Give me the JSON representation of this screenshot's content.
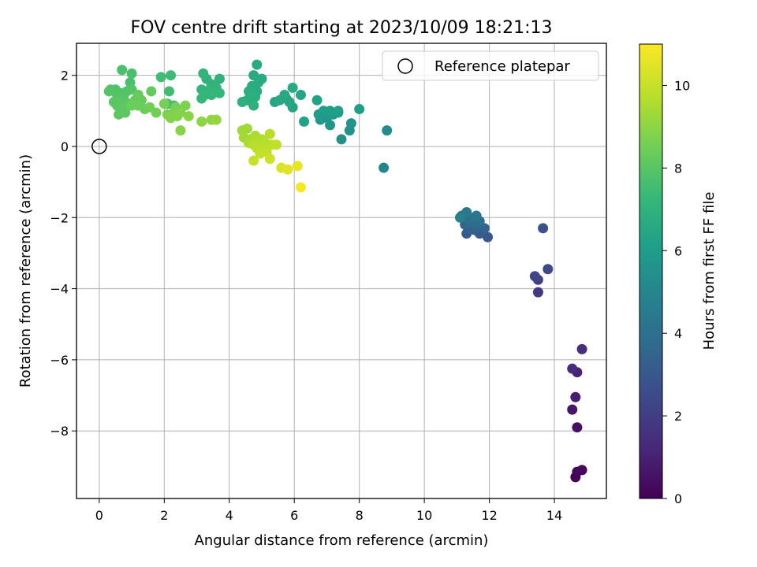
{
  "chart_data": {
    "type": "scatter",
    "title": "FOV centre drift starting at 2023/10/09 18:21:13",
    "xlabel": "Angular distance from reference (arcmin)",
    "ylabel": "Rotation from reference (arcmin)",
    "xlim": [
      -0.7,
      15.6
    ],
    "ylim": [
      -9.9,
      2.9
    ],
    "xticks": [
      0,
      2,
      4,
      6,
      8,
      10,
      12,
      14
    ],
    "yticks": [
      -8,
      -6,
      -4,
      -2,
      0,
      2
    ],
    "xtick_labels": [
      "0",
      "2",
      "4",
      "6",
      "8",
      "10",
      "12",
      "14"
    ],
    "ytick_labels": [
      "−8",
      "−6",
      "−4",
      "−2",
      "0",
      "2"
    ],
    "grid": true,
    "legend": {
      "position": "top-right",
      "entries": [
        "Reference platepar"
      ]
    },
    "reference_point": {
      "x": 0,
      "y": 0
    },
    "colorbar": {
      "label": "Hours from first FF file",
      "range": [
        0,
        11
      ],
      "ticks": [
        0,
        2,
        4,
        6,
        8,
        10
      ],
      "tick_labels": [
        "0",
        "2",
        "4",
        "6",
        "8",
        "10"
      ],
      "colormap": "viridis",
      "colors": [
        "#440154",
        "#482878",
        "#3e4989",
        "#31688e",
        "#26828e",
        "#1f9e89",
        "#35b779",
        "#6ece58",
        "#b5de2b",
        "#fde725"
      ]
    },
    "points": [
      {
        "x": 14.65,
        "y": -9.3,
        "c": 0.05
      },
      {
        "x": 14.7,
        "y": -9.15,
        "c": 0.15
      },
      {
        "x": 14.85,
        "y": -9.1,
        "c": 0.25
      },
      {
        "x": 14.7,
        "y": -7.9,
        "c": 0.5
      },
      {
        "x": 14.55,
        "y": -7.4,
        "c": 0.7
      },
      {
        "x": 14.65,
        "y": -7.05,
        "c": 0.9
      },
      {
        "x": 14.7,
        "y": -6.35,
        "c": 1.1
      },
      {
        "x": 14.55,
        "y": -6.25,
        "c": 1.3
      },
      {
        "x": 14.85,
        "y": -5.7,
        "c": 1.5
      },
      {
        "x": 13.5,
        "y": -4.1,
        "c": 1.9
      },
      {
        "x": 13.5,
        "y": -3.75,
        "c": 2.1
      },
      {
        "x": 13.4,
        "y": -3.65,
        "c": 2.3
      },
      {
        "x": 13.8,
        "y": -3.45,
        "c": 2.5
      },
      {
        "x": 13.65,
        "y": -2.3,
        "c": 2.8
      },
      {
        "x": 11.95,
        "y": -2.55,
        "c": 3.0
      },
      {
        "x": 11.3,
        "y": -2.45,
        "c": 3.1
      },
      {
        "x": 11.7,
        "y": -2.45,
        "c": 3.2
      },
      {
        "x": 11.55,
        "y": -2.35,
        "c": 3.3
      },
      {
        "x": 11.4,
        "y": -2.3,
        "c": 3.4
      },
      {
        "x": 11.85,
        "y": -2.3,
        "c": 3.5
      },
      {
        "x": 11.25,
        "y": -2.2,
        "c": 3.6
      },
      {
        "x": 11.6,
        "y": -2.2,
        "c": 3.7
      },
      {
        "x": 11.45,
        "y": -2.15,
        "c": 3.8
      },
      {
        "x": 11.7,
        "y": -2.1,
        "c": 3.9
      },
      {
        "x": 11.35,
        "y": -2.05,
        "c": 4.0
      },
      {
        "x": 11.55,
        "y": -2.0,
        "c": 4.1
      },
      {
        "x": 11.15,
        "y": -1.95,
        "c": 4.2
      },
      {
        "x": 11.6,
        "y": -1.95,
        "c": 4.3
      },
      {
        "x": 11.3,
        "y": -1.85,
        "c": 4.4
      },
      {
        "x": 11.1,
        "y": -2.0,
        "c": 4.8
      },
      {
        "x": 8.75,
        "y": -0.6,
        "c": 5.1
      },
      {
        "x": 8.85,
        "y": 0.45,
        "c": 5.3
      },
      {
        "x": 7.45,
        "y": 0.2,
        "c": 5.5
      },
      {
        "x": 7.7,
        "y": 0.45,
        "c": 5.6
      },
      {
        "x": 7.75,
        "y": 0.65,
        "c": 5.7
      },
      {
        "x": 7.1,
        "y": 0.6,
        "c": 5.8
      },
      {
        "x": 6.8,
        "y": 0.75,
        "c": 5.9
      },
      {
        "x": 7.0,
        "y": 0.8,
        "c": 5.9
      },
      {
        "x": 6.75,
        "y": 0.9,
        "c": 6.0
      },
      {
        "x": 7.2,
        "y": 0.9,
        "c": 6.0
      },
      {
        "x": 7.35,
        "y": 0.95,
        "c": 6.1
      },
      {
        "x": 6.9,
        "y": 1.0,
        "c": 6.1
      },
      {
        "x": 7.1,
        "y": 1.0,
        "c": 6.1
      },
      {
        "x": 7.35,
        "y": 1.0,
        "c": 6.2
      },
      {
        "x": 8.0,
        "y": 1.05,
        "c": 6.2
      },
      {
        "x": 6.7,
        "y": 1.3,
        "c": 6.3
      },
      {
        "x": 6.3,
        "y": 0.7,
        "c": 6.3
      },
      {
        "x": 5.95,
        "y": 1.1,
        "c": 6.4
      },
      {
        "x": 6.2,
        "y": 1.45,
        "c": 6.4
      },
      {
        "x": 5.85,
        "y": 1.25,
        "c": 6.5
      },
      {
        "x": 5.75,
        "y": 1.35,
        "c": 6.5
      },
      {
        "x": 5.4,
        "y": 1.25,
        "c": 6.5
      },
      {
        "x": 5.55,
        "y": 1.3,
        "c": 6.6
      },
      {
        "x": 5.7,
        "y": 1.45,
        "c": 6.6
      },
      {
        "x": 5.95,
        "y": 1.65,
        "c": 6.6
      },
      {
        "x": 4.85,
        "y": 2.3,
        "c": 6.7
      },
      {
        "x": 5.0,
        "y": 1.9,
        "c": 6.7
      },
      {
        "x": 4.75,
        "y": 2.0,
        "c": 6.7
      },
      {
        "x": 4.9,
        "y": 1.8,
        "c": 6.8
      },
      {
        "x": 4.7,
        "y": 1.7,
        "c": 6.8
      },
      {
        "x": 4.85,
        "y": 1.55,
        "c": 6.8
      },
      {
        "x": 4.6,
        "y": 1.55,
        "c": 6.9
      },
      {
        "x": 4.8,
        "y": 1.4,
        "c": 6.9
      },
      {
        "x": 4.55,
        "y": 1.3,
        "c": 6.9
      },
      {
        "x": 4.7,
        "y": 1.25,
        "c": 6.9
      },
      {
        "x": 4.4,
        "y": 1.25,
        "c": 7.0
      },
      {
        "x": 4.75,
        "y": 1.15,
        "c": 7.0
      },
      {
        "x": 3.7,
        "y": 1.9,
        "c": 7.1
      },
      {
        "x": 3.45,
        "y": 1.75,
        "c": 7.1
      },
      {
        "x": 3.3,
        "y": 1.9,
        "c": 7.1
      },
      {
        "x": 3.2,
        "y": 2.05,
        "c": 7.2
      },
      {
        "x": 3.6,
        "y": 1.65,
        "c": 7.2
      },
      {
        "x": 3.4,
        "y": 1.6,
        "c": 7.2
      },
      {
        "x": 3.15,
        "y": 1.6,
        "c": 7.2
      },
      {
        "x": 3.7,
        "y": 1.5,
        "c": 7.3
      },
      {
        "x": 3.45,
        "y": 1.45,
        "c": 7.3
      },
      {
        "x": 3.25,
        "y": 1.45,
        "c": 7.3
      },
      {
        "x": 3.15,
        "y": 1.35,
        "c": 7.3
      },
      {
        "x": 2.2,
        "y": 2.0,
        "c": 7.5
      },
      {
        "x": 1.9,
        "y": 1.95,
        "c": 7.6
      },
      {
        "x": 2.15,
        "y": 1.55,
        "c": 7.6
      },
      {
        "x": 2.3,
        "y": 1.15,
        "c": 7.7
      },
      {
        "x": 2.1,
        "y": 1.2,
        "c": 7.7
      },
      {
        "x": 0.7,
        "y": 2.15,
        "c": 7.8
      },
      {
        "x": 1.0,
        "y": 2.05,
        "c": 7.8
      },
      {
        "x": 0.95,
        "y": 1.8,
        "c": 7.8
      },
      {
        "x": 0.35,
        "y": 1.6,
        "c": 7.9
      },
      {
        "x": 0.5,
        "y": 1.6,
        "c": 7.9
      },
      {
        "x": 0.65,
        "y": 1.5,
        "c": 7.9
      },
      {
        "x": 0.85,
        "y": 1.55,
        "c": 7.9
      },
      {
        "x": 1.0,
        "y": 1.6,
        "c": 8.0
      },
      {
        "x": 0.3,
        "y": 1.55,
        "c": 8.0
      },
      {
        "x": 0.55,
        "y": 1.45,
        "c": 8.0
      },
      {
        "x": 0.75,
        "y": 1.4,
        "c": 8.0
      },
      {
        "x": 0.6,
        "y": 1.3,
        "c": 8.1
      },
      {
        "x": 0.45,
        "y": 1.25,
        "c": 8.1
      },
      {
        "x": 0.8,
        "y": 1.25,
        "c": 8.1
      },
      {
        "x": 0.55,
        "y": 1.15,
        "c": 8.1
      },
      {
        "x": 0.7,
        "y": 1.1,
        "c": 8.2
      },
      {
        "x": 0.9,
        "y": 1.2,
        "c": 8.2
      },
      {
        "x": 0.6,
        "y": 0.9,
        "c": 8.2
      },
      {
        "x": 0.8,
        "y": 0.95,
        "c": 8.2
      },
      {
        "x": 1.6,
        "y": 1.55,
        "c": 8.3
      },
      {
        "x": 1.2,
        "y": 1.45,
        "c": 8.4
      },
      {
        "x": 1.1,
        "y": 1.3,
        "c": 8.4
      },
      {
        "x": 1.3,
        "y": 1.3,
        "c": 8.4
      },
      {
        "x": 1.0,
        "y": 1.15,
        "c": 8.5
      },
      {
        "x": 1.2,
        "y": 1.15,
        "c": 8.5
      },
      {
        "x": 1.4,
        "y": 1.05,
        "c": 8.5
      },
      {
        "x": 1.55,
        "y": 1.1,
        "c": 8.6
      },
      {
        "x": 1.75,
        "y": 0.95,
        "c": 8.6
      },
      {
        "x": 2.0,
        "y": 1.2,
        "c": 8.7
      },
      {
        "x": 2.35,
        "y": 1.1,
        "c": 8.7
      },
      {
        "x": 2.65,
        "y": 1.15,
        "c": 8.8
      },
      {
        "x": 2.1,
        "y": 0.9,
        "c": 8.8
      },
      {
        "x": 2.3,
        "y": 0.95,
        "c": 8.8
      },
      {
        "x": 2.5,
        "y": 0.95,
        "c": 8.9
      },
      {
        "x": 2.2,
        "y": 0.8,
        "c": 8.9
      },
      {
        "x": 2.4,
        "y": 0.85,
        "c": 8.9
      },
      {
        "x": 2.75,
        "y": 0.85,
        "c": 9.0
      },
      {
        "x": 2.5,
        "y": 0.45,
        "c": 9.0
      },
      {
        "x": 3.15,
        "y": 0.7,
        "c": 9.1
      },
      {
        "x": 3.45,
        "y": 0.75,
        "c": 9.1
      },
      {
        "x": 3.6,
        "y": 0.75,
        "c": 9.2
      },
      {
        "x": 4.4,
        "y": 0.45,
        "c": 9.4
      },
      {
        "x": 4.55,
        "y": 0.5,
        "c": 9.4
      },
      {
        "x": 4.45,
        "y": 0.25,
        "c": 9.5
      },
      {
        "x": 4.65,
        "y": 0.2,
        "c": 9.5
      },
      {
        "x": 4.8,
        "y": 0.3,
        "c": 9.6
      },
      {
        "x": 4.6,
        "y": 0.1,
        "c": 9.6
      },
      {
        "x": 4.9,
        "y": 0.15,
        "c": 9.7
      },
      {
        "x": 5.0,
        "y": 0.2,
        "c": 9.7
      },
      {
        "x": 4.75,
        "y": 0.05,
        "c": 9.8
      },
      {
        "x": 5.1,
        "y": 0.1,
        "c": 9.8
      },
      {
        "x": 5.25,
        "y": 0.35,
        "c": 9.8
      },
      {
        "x": 4.85,
        "y": -0.05,
        "c": 9.9
      },
      {
        "x": 5.0,
        "y": -0.1,
        "c": 9.9
      },
      {
        "x": 5.3,
        "y": 0.05,
        "c": 9.9
      },
      {
        "x": 5.15,
        "y": -0.15,
        "c": 10.0
      },
      {
        "x": 5.45,
        "y": 0.05,
        "c": 10.0
      },
      {
        "x": 4.95,
        "y": -0.2,
        "c": 10.0
      },
      {
        "x": 4.75,
        "y": -0.4,
        "c": 10.1
      },
      {
        "x": 5.25,
        "y": -0.35,
        "c": 10.2
      },
      {
        "x": 5.6,
        "y": -0.6,
        "c": 10.4
      },
      {
        "x": 5.8,
        "y": -0.65,
        "c": 10.5
      },
      {
        "x": 6.1,
        "y": -0.55,
        "c": 10.6
      },
      {
        "x": 6.2,
        "y": -1.15,
        "c": 10.9
      }
    ]
  }
}
